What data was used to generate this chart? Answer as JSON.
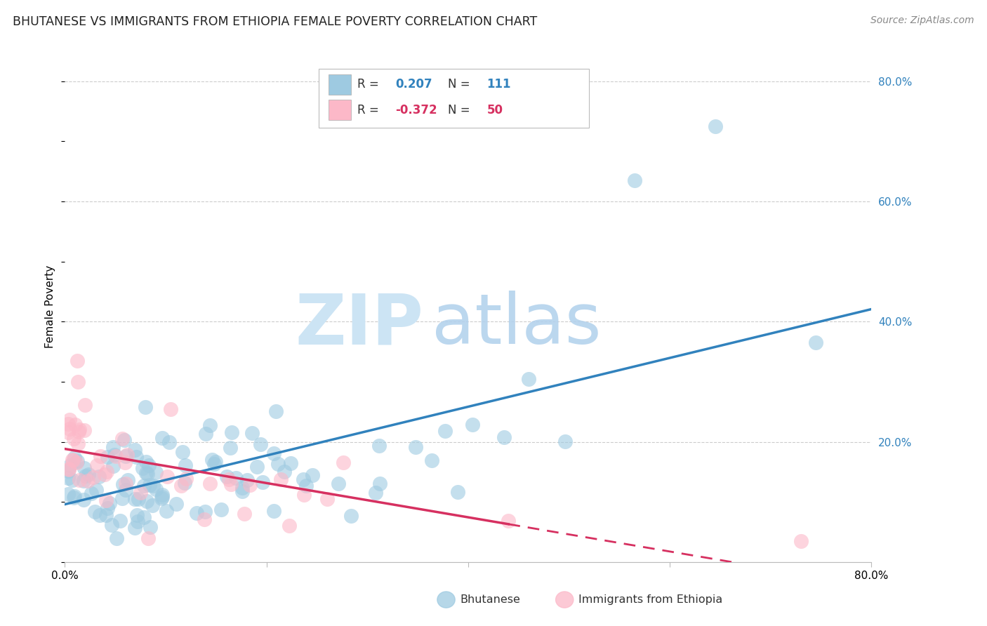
{
  "title": "BHUTANESE VS IMMIGRANTS FROM ETHIOPIA FEMALE POVERTY CORRELATION CHART",
  "source": "Source: ZipAtlas.com",
  "ylabel": "Female Poverty",
  "right_yticks": [
    "80.0%",
    "60.0%",
    "40.0%",
    "20.0%"
  ],
  "right_ytick_vals": [
    0.8,
    0.6,
    0.4,
    0.2
  ],
  "legend_label1": "Bhutanese",
  "legend_label2": "Immigrants from Ethiopia",
  "R1": 0.207,
  "N1": 111,
  "R2": -0.372,
  "N2": 50,
  "blue_color": "#9ecae1",
  "blue_line_color": "#3182bd",
  "pink_color": "#fcb8c8",
  "pink_line_color": "#d63060",
  "background_color": "#ffffff",
  "grid_color": "#cccccc"
}
